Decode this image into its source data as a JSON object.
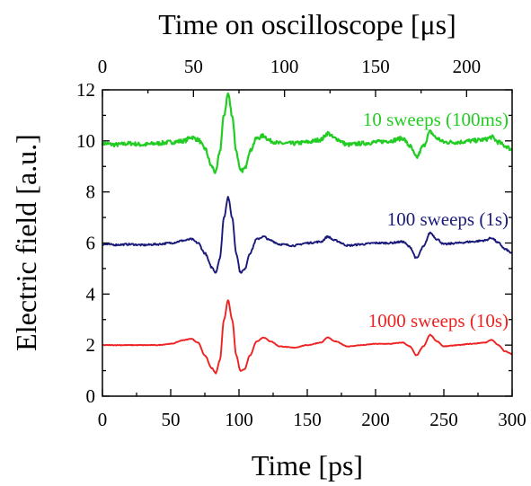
{
  "chart_data": {
    "type": "line",
    "xlabel": "Time [ps]",
    "x2label": "Time on oscilloscope [μs]",
    "ylabel": "Electric field [a.u.]",
    "xlim": [
      0,
      300
    ],
    "x2lim": [
      0,
      225
    ],
    "ylim": [
      0,
      12
    ],
    "xticks": [
      0,
      50,
      100,
      150,
      200,
      250,
      300
    ],
    "x2ticks": [
      0,
      50,
      100,
      150,
      200
    ],
    "yticks": [
      0,
      2,
      4,
      6,
      8,
      10,
      12
    ],
    "grid": false,
    "series": [
      {
        "name": "10 sweeps (100ms)",
        "color": "#22cc22",
        "noise": 0.08,
        "x": [
          0,
          10,
          20,
          30,
          40,
          50,
          60,
          65,
          70,
          75,
          80,
          83,
          86,
          89,
          92,
          95,
          98,
          101,
          104,
          108,
          113,
          118,
          123,
          130,
          140,
          150,
          160,
          165,
          170,
          180,
          190,
          200,
          210,
          220,
          225,
          230,
          235,
          240,
          245,
          250,
          260,
          270,
          280,
          285,
          290,
          295,
          300
        ],
        "y": [
          9.9,
          9.85,
          9.9,
          9.85,
          9.9,
          9.95,
          10.0,
          10.15,
          10.05,
          9.7,
          9.0,
          8.75,
          9.6,
          11.0,
          11.85,
          11.0,
          9.6,
          8.8,
          8.9,
          9.6,
          10.1,
          10.2,
          10.0,
          9.9,
          9.9,
          9.95,
          10.05,
          10.3,
          10.1,
          9.85,
          9.9,
          9.95,
          10.0,
          10.1,
          9.8,
          9.35,
          9.8,
          10.35,
          10.1,
          9.95,
          9.95,
          10.0,
          10.05,
          10.15,
          9.95,
          9.8,
          9.65
        ]
      },
      {
        "name": "100 sweeps (1s)",
        "color": "#1a1a7a",
        "noise": 0.035,
        "x": [
          0,
          10,
          20,
          30,
          40,
          50,
          60,
          65,
          70,
          75,
          80,
          83,
          86,
          89,
          92,
          95,
          98,
          101,
          104,
          108,
          113,
          118,
          123,
          130,
          140,
          150,
          160,
          165,
          170,
          180,
          190,
          200,
          210,
          220,
          225,
          230,
          235,
          240,
          245,
          250,
          260,
          270,
          280,
          285,
          290,
          295,
          300
        ],
        "y": [
          5.95,
          5.93,
          5.95,
          5.92,
          5.95,
          6.0,
          6.1,
          6.15,
          6.0,
          5.6,
          5.05,
          4.85,
          5.4,
          7.0,
          7.8,
          7.0,
          5.6,
          4.85,
          4.95,
          5.6,
          6.15,
          6.25,
          6.1,
          5.95,
          5.9,
          6.0,
          6.05,
          6.25,
          6.1,
          5.9,
          5.95,
          6.0,
          6.0,
          6.05,
          5.85,
          5.4,
          5.85,
          6.4,
          6.15,
          5.95,
          6.0,
          6.05,
          6.1,
          6.2,
          6.0,
          5.75,
          5.6
        ]
      },
      {
        "name": "1000 sweeps (10s)",
        "color": "#ee2222",
        "noise": 0.012,
        "x": [
          0,
          10,
          20,
          30,
          40,
          50,
          60,
          65,
          70,
          75,
          80,
          83,
          86,
          89,
          92,
          95,
          98,
          101,
          104,
          108,
          113,
          118,
          123,
          130,
          140,
          150,
          160,
          165,
          170,
          180,
          190,
          200,
          210,
          220,
          225,
          230,
          235,
          240,
          245,
          250,
          260,
          270,
          280,
          285,
          290,
          295,
          300
        ],
        "y": [
          2.0,
          2.0,
          2.0,
          2.0,
          2.0,
          2.05,
          2.2,
          2.25,
          2.1,
          1.6,
          1.1,
          0.9,
          1.4,
          3.0,
          3.75,
          3.0,
          1.6,
          1.0,
          1.05,
          1.6,
          2.15,
          2.3,
          2.15,
          1.95,
          1.9,
          2.0,
          2.1,
          2.3,
          2.15,
          1.95,
          2.0,
          2.05,
          2.05,
          2.1,
          1.95,
          1.6,
          1.95,
          2.4,
          2.15,
          1.95,
          2.0,
          2.05,
          2.1,
          2.2,
          2.0,
          1.75,
          1.65
        ]
      }
    ]
  }
}
